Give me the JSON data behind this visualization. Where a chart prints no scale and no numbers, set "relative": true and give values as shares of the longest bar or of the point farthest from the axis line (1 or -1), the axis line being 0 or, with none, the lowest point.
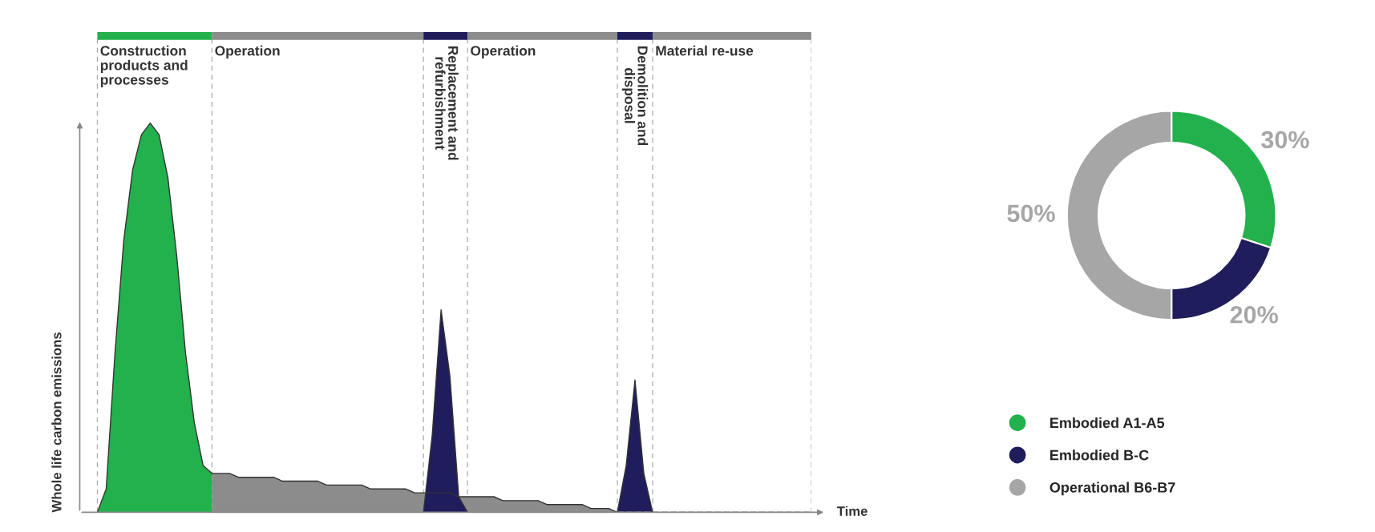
{
  "chart_data": [
    {
      "type": "area",
      "relative": true,
      "grid": "x",
      "annotations": [
        "Construction\nproducts and\nprocesses",
        "Operation",
        "Replacement and\nrefurbishment",
        "Operation",
        "Demolition and\ndisposal",
        "Material re-use"
      ],
      "xlabel": "Time",
      "ylabel": "Whole life carbon emissions",
      "categories": [
        null,
        null,
        null,
        null,
        null,
        null,
        null,
        null,
        null,
        null,
        null,
        null,
        null,
        null,
        null,
        null,
        null,
        null,
        null,
        null,
        null,
        null,
        null,
        null,
        null,
        null,
        null,
        null,
        null,
        null,
        null,
        null,
        null,
        null,
        null,
        null,
        null,
        null,
        null,
        null,
        null,
        null,
        null,
        null,
        null,
        null,
        null,
        null,
        null,
        null,
        null,
        null,
        null,
        null,
        null,
        null,
        null,
        null,
        null,
        null,
        null,
        null,
        null,
        null,
        null,
        null,
        null,
        null,
        null,
        null,
        null,
        null,
        null,
        null,
        null,
        null,
        null,
        null,
        null,
        null,
        null,
        null,
        null,
        null
      ],
      "series": [
        {
          "type": "area",
          "color": "#8c8c8c",
          "values": [
            null,
            null,
            null,
            null,
            null,
            null,
            null,
            null,
            null,
            null,
            null,
            null,
            null,
            null,
            null,
            0.1,
            0.1,
            0.1,
            0.09,
            0.09,
            0.09,
            0.09,
            0.09,
            0.08,
            0.08,
            0.08,
            0.08,
            0.08,
            0.07,
            0.07,
            0.07,
            0.07,
            0.07,
            0.06,
            0.06,
            0.06,
            0.06,
            0.06,
            0.05,
            0.05,
            0.05,
            0.05,
            0.05,
            0.04,
            0.04,
            0.04,
            0.04,
            0.04,
            0.03,
            0.03,
            0.03,
            0.03,
            0.03,
            0.02,
            0.02,
            0.02,
            0.02,
            0.02,
            0.01,
            0.01,
            0.01,
            0,
            null,
            null,
            null,
            null,
            null,
            null,
            null,
            null,
            null,
            null,
            null,
            null,
            null,
            null,
            null,
            null,
            null,
            null,
            null,
            null,
            null,
            null
          ]
        },
        {
          "type": "line",
          "color": "#8c8c8c",
          "line_style": "dashed",
          "values": [
            null,
            null,
            null,
            null,
            null,
            null,
            null,
            null,
            null,
            null,
            null,
            null,
            null,
            null,
            null,
            null,
            null,
            null,
            null,
            null,
            null,
            null,
            null,
            null,
            null,
            null,
            null,
            null,
            null,
            null,
            null,
            null,
            null,
            null,
            null,
            null,
            null,
            null,
            null,
            null,
            null,
            null,
            null,
            null,
            null,
            null,
            null,
            null,
            null,
            null,
            null,
            null,
            null,
            null,
            null,
            null,
            null,
            null,
            null,
            null,
            null,
            0,
            0,
            0,
            0,
            0,
            0,
            0,
            0,
            0,
            0,
            0,
            0,
            0,
            0,
            0,
            0,
            0,
            0,
            0,
            0,
            0,
            0,
            0
          ]
        },
        {
          "type": "area",
          "color": "#22b14c",
          "values": [
            null,
            null,
            0,
            0.06,
            0.41,
            0.7,
            0.88,
            0.97,
            1,
            0.97,
            0.86,
            0.66,
            0.41,
            0.23,
            0.12,
            0.1,
            null,
            null,
            null,
            null,
            null,
            null,
            null,
            null,
            null,
            null,
            null,
            null,
            null,
            null,
            null,
            null,
            null,
            null,
            null,
            null,
            null,
            null,
            null,
            null,
            null,
            null,
            null,
            null,
            null,
            null,
            null,
            null,
            null,
            null,
            null,
            null,
            null,
            null,
            null,
            null,
            null,
            null,
            null,
            null,
            null,
            null,
            null,
            null,
            null,
            null,
            null,
            null,
            null,
            null,
            null,
            null,
            null,
            null,
            null,
            null,
            null,
            null,
            null,
            null,
            null,
            null,
            null,
            null
          ]
        },
        {
          "type": "area",
          "color": "#1f1d5c",
          "values": [
            null,
            null,
            null,
            null,
            null,
            null,
            null,
            null,
            null,
            null,
            null,
            null,
            null,
            null,
            null,
            null,
            null,
            null,
            null,
            null,
            null,
            null,
            null,
            null,
            null,
            null,
            null,
            null,
            null,
            null,
            null,
            null,
            null,
            null,
            null,
            null,
            null,
            null,
            null,
            0,
            0.2,
            0.52,
            0.35,
            0.04,
            0,
            null,
            null,
            null,
            null,
            null,
            null,
            null,
            null,
            null,
            null,
            null,
            null,
            null,
            null,
            null,
            null,
            null,
            null,
            null,
            null,
            null,
            null,
            null,
            null,
            null,
            null,
            null,
            null,
            null,
            null,
            null,
            null,
            null,
            null,
            null,
            null,
            null,
            null,
            null
          ]
        },
        {
          "type": "area",
          "color": "#1f1d5c",
          "values": [
            null,
            null,
            null,
            null,
            null,
            null,
            null,
            null,
            null,
            null,
            null,
            null,
            null,
            null,
            null,
            null,
            null,
            null,
            null,
            null,
            null,
            null,
            null,
            null,
            null,
            null,
            null,
            null,
            null,
            null,
            null,
            null,
            null,
            null,
            null,
            null,
            null,
            null,
            null,
            null,
            null,
            null,
            null,
            null,
            null,
            null,
            null,
            null,
            null,
            null,
            null,
            null,
            null,
            null,
            null,
            null,
            null,
            null,
            null,
            null,
            null,
            0,
            0.12,
            0.34,
            0.1,
            0,
            null,
            null,
            null,
            null,
            null,
            null,
            null,
            null,
            null,
            null,
            null,
            null,
            null,
            null,
            null,
            null,
            null,
            null
          ]
        }
      ]
    },
    {
      "type": "donut",
      "legend": "bottom",
      "categories": [
        "Embodied A1-A5",
        "Embodied B-C",
        "Operational B6-B7"
      ],
      "values": [
        30,
        20,
        50
      ],
      "colors": [
        "#22b14c",
        "#1f1d5c",
        "#a6a6a6"
      ],
      "value_labels": [
        "30%",
        "20%",
        "50%"
      ]
    }
  ]
}
